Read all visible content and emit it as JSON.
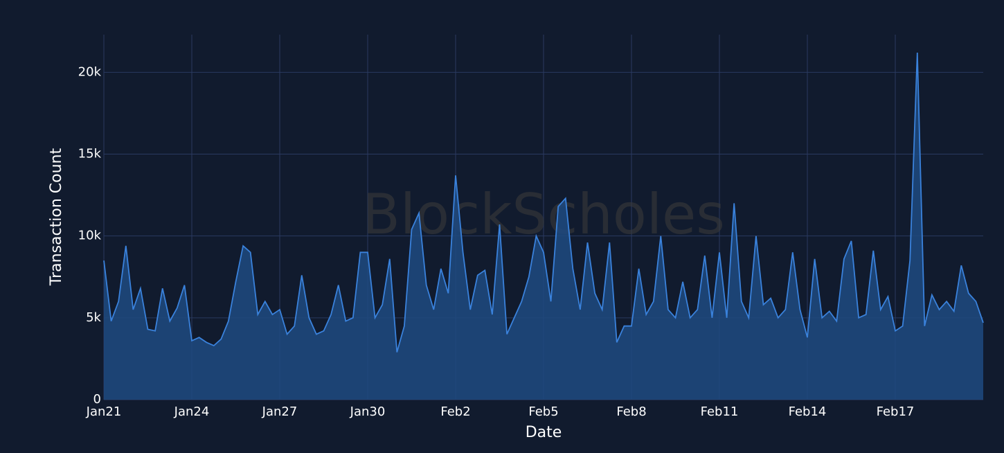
{
  "chart_data": {
    "type": "area",
    "watermark": "BlockScholes",
    "x_label": "Date",
    "y_label": "Transaction Count",
    "categories": [
      "Jan21",
      null,
      null,
      null,
      null,
      null,
      null,
      null,
      null,
      null,
      null,
      null,
      "Jan24",
      null,
      null,
      null,
      null,
      null,
      null,
      null,
      null,
      null,
      null,
      null,
      "Jan27",
      null,
      null,
      null,
      null,
      null,
      null,
      null,
      null,
      null,
      null,
      null,
      "Jan30",
      null,
      null,
      null,
      null,
      null,
      null,
      null,
      null,
      null,
      null,
      null,
      "Feb2",
      null,
      null,
      null,
      null,
      null,
      null,
      null,
      null,
      null,
      null,
      null,
      "Feb5",
      null,
      null,
      null,
      null,
      null,
      null,
      null,
      null,
      null,
      null,
      null,
      "Feb8",
      null,
      null,
      null,
      null,
      null,
      null,
      null,
      null,
      null,
      null,
      null,
      "Feb11",
      null,
      null,
      null,
      null,
      null,
      null,
      null,
      null,
      null,
      null,
      null,
      "Feb14",
      null,
      null,
      null,
      null,
      null,
      null,
      null,
      null,
      null,
      null,
      null,
      "Feb17",
      null,
      null,
      null,
      null,
      null,
      null,
      null,
      null,
      null,
      null,
      null,
      null
    ],
    "series": [
      {
        "name": "Transaction Count",
        "color": "#3a82dc",
        "fill": "#1f4a80",
        "values": [
          8500,
          4800,
          6000,
          9400,
          5500,
          6800,
          4300,
          4200,
          6800,
          4800,
          5600,
          7000,
          3600,
          3800,
          3500,
          3300,
          3700,
          4800,
          7200,
          9400,
          9000,
          5200,
          6000,
          5200,
          5500,
          4000,
          4500,
          7600,
          5000,
          4000,
          4200,
          5200,
          7000,
          4800,
          5000,
          9000,
          9000,
          5000,
          5800,
          8600,
          2900,
          4500,
          10400,
          11400,
          7000,
          5500,
          8000,
          6500,
          13700,
          9000,
          5500,
          7600,
          7900,
          5200,
          10700,
          4000,
          5000,
          6000,
          7500,
          10000,
          9000,
          6000,
          11800,
          12300,
          8000,
          5500,
          9600,
          6500,
          5500,
          9600,
          3500,
          4500,
          4500,
          8000,
          5200,
          6000,
          10000,
          5500,
          5000,
          7200,
          5000,
          5500,
          8800,
          5000,
          9000,
          5000,
          12000,
          6000,
          5000,
          10000,
          5800,
          6200,
          5000,
          5500,
          9000,
          5500,
          3800,
          8600,
          5000,
          5400,
          4800,
          8600,
          9700,
          5000,
          5200,
          9100,
          5500,
          6300,
          4200,
          4500,
          8500,
          21200,
          4500,
          6400,
          5500,
          6000,
          5400,
          8200,
          6500,
          6000,
          4700
        ]
      }
    ],
    "ylim": [
      0,
      22300
    ],
    "yticks": [
      0,
      {
        "value": 5000,
        "label": "5k"
      },
      {
        "value": 10000,
        "label": "10k"
      },
      {
        "value": 15000,
        "label": "15k"
      },
      {
        "value": 20000,
        "label": "20k"
      }
    ],
    "grid": true,
    "background": "#111b2e"
  }
}
